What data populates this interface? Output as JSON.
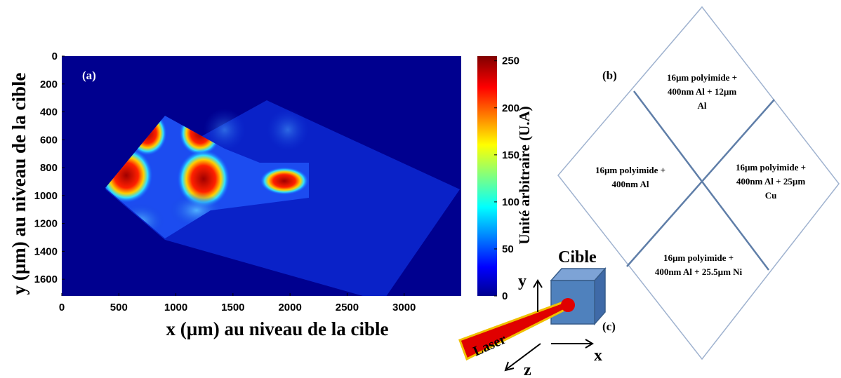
{
  "panel_a": {
    "label": "(a)",
    "x_label": "x (µm) au niveau de la cible",
    "y_label": "y (µm) au niveau de la cible",
    "xlim": [
      0,
      3500
    ],
    "ylim": [
      0,
      1720
    ],
    "xticks": [
      0,
      500,
      1000,
      1500,
      2000,
      2500,
      3000
    ],
    "yticks": [
      0,
      200,
      400,
      600,
      800,
      1000,
      1200,
      1400,
      1600
    ],
    "colorbar": {
      "label": "Unité arbitraire (U.A)",
      "lim": [
        0,
        255
      ],
      "ticks": [
        0,
        50,
        100,
        150,
        200,
        250
      ]
    }
  },
  "panel_b": {
    "label": "(b)",
    "regions": {
      "top": [
        "16µm polyimide +",
        "400nm Al + 12µm",
        "Al"
      ],
      "left": [
        "16µm polyimide +",
        "400nm Al"
      ],
      "right": [
        "16µm polyimide +",
        "400nm Al + 25µm",
        "Cu"
      ],
      "bottom": [
        "16µm polyimide +",
        "400nm Al + 25.5µm Ni"
      ]
    }
  },
  "panel_c": {
    "label": "(c)",
    "target": "Cible",
    "laser": "Laser",
    "axis_x": "x",
    "axis_y": "y",
    "axis_z": "z"
  }
}
